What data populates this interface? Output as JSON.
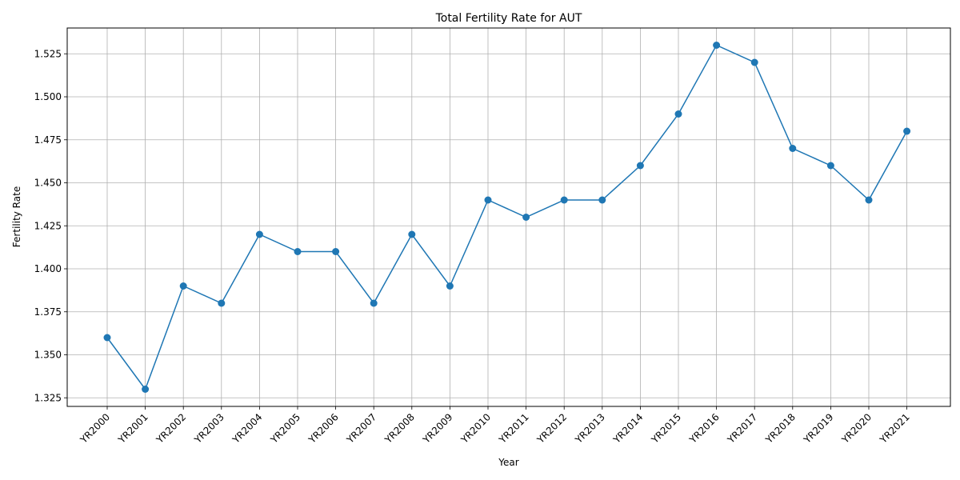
{
  "chart_data": {
    "type": "line",
    "title": "Total Fertility Rate for AUT",
    "xlabel": "Year",
    "ylabel": "Fertility Rate",
    "categories": [
      "YR2000",
      "YR2001",
      "YR2002",
      "YR2003",
      "YR2004",
      "YR2005",
      "YR2006",
      "YR2007",
      "YR2008",
      "YR2009",
      "YR2010",
      "YR2011",
      "YR2012",
      "YR2013",
      "YR2014",
      "YR2015",
      "YR2016",
      "YR2017",
      "YR2018",
      "YR2019",
      "YR2020",
      "YR2021"
    ],
    "series": [
      {
        "values": [
          1.36,
          1.33,
          1.39,
          1.38,
          1.42,
          1.41,
          1.41,
          1.38,
          1.42,
          1.39,
          1.44,
          1.43,
          1.44,
          1.44,
          1.46,
          1.49,
          1.53,
          1.52,
          1.47,
          1.46,
          1.44,
          1.48
        ],
        "color": "#1f77b4",
        "marker": "circle"
      }
    ],
    "ylim": [
      1.32,
      1.54
    ],
    "yticks": [
      1.325,
      1.35,
      1.375,
      1.4,
      1.425,
      1.45,
      1.475,
      1.5,
      1.525
    ],
    "ytick_labels": [
      "1.325",
      "1.350",
      "1.375",
      "1.400",
      "1.425",
      "1.450",
      "1.475",
      "1.500",
      "1.525"
    ],
    "grid": true,
    "xtick_rotation": 45
  }
}
